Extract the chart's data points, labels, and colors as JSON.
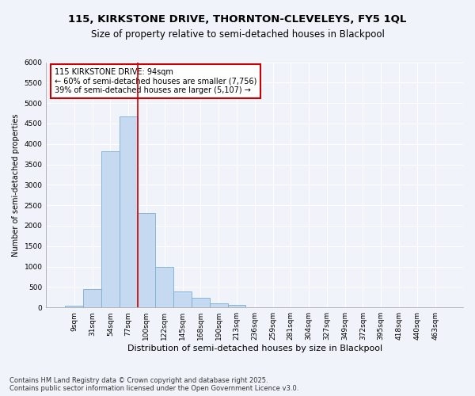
{
  "title": "115, KIRKSTONE DRIVE, THORNTON-CLEVELEYS, FY5 1QL",
  "subtitle": "Size of property relative to semi-detached houses in Blackpool",
  "xlabel": "Distribution of semi-detached houses by size in Blackpool",
  "ylabel": "Number of semi-detached properties",
  "categories": [
    "9sqm",
    "31sqm",
    "54sqm",
    "77sqm",
    "100sqm",
    "122sqm",
    "145sqm",
    "168sqm",
    "190sqm",
    "213sqm",
    "236sqm",
    "259sqm",
    "281sqm",
    "304sqm",
    "327sqm",
    "349sqm",
    "372sqm",
    "395sqm",
    "418sqm",
    "440sqm",
    "463sqm"
  ],
  "values": [
    40,
    450,
    3820,
    4680,
    2300,
    1000,
    390,
    230,
    100,
    65,
    0,
    0,
    0,
    0,
    0,
    0,
    0,
    0,
    0,
    0,
    0
  ],
  "bar_color": "#c5d9f1",
  "bar_edge_color": "#7bafd4",
  "vline_x_index": 4,
  "vline_color": "#cc0000",
  "ylim": [
    0,
    6000
  ],
  "yticks": [
    0,
    500,
    1000,
    1500,
    2000,
    2500,
    3000,
    3500,
    4000,
    4500,
    5000,
    5500,
    6000
  ],
  "annotation_title": "115 KIRKSTONE DRIVE: 94sqm",
  "annotation_line1": "← 60% of semi-detached houses are smaller (7,756)",
  "annotation_line2": "39% of semi-detached houses are larger (5,107) →",
  "annotation_box_color": "#cc0000",
  "bg_color": "#f0f4fa",
  "plot_bg_color": "#f0f4fa",
  "grid_color": "#ffffff",
  "footnote": "Contains HM Land Registry data © Crown copyright and database right 2025.\nContains public sector information licensed under the Open Government Licence v3.0.",
  "title_fontsize": 9.5,
  "subtitle_fontsize": 8.5,
  "xlabel_fontsize": 8,
  "ylabel_fontsize": 7,
  "tick_fontsize": 6.5,
  "annot_fontsize": 7,
  "footnote_fontsize": 6
}
